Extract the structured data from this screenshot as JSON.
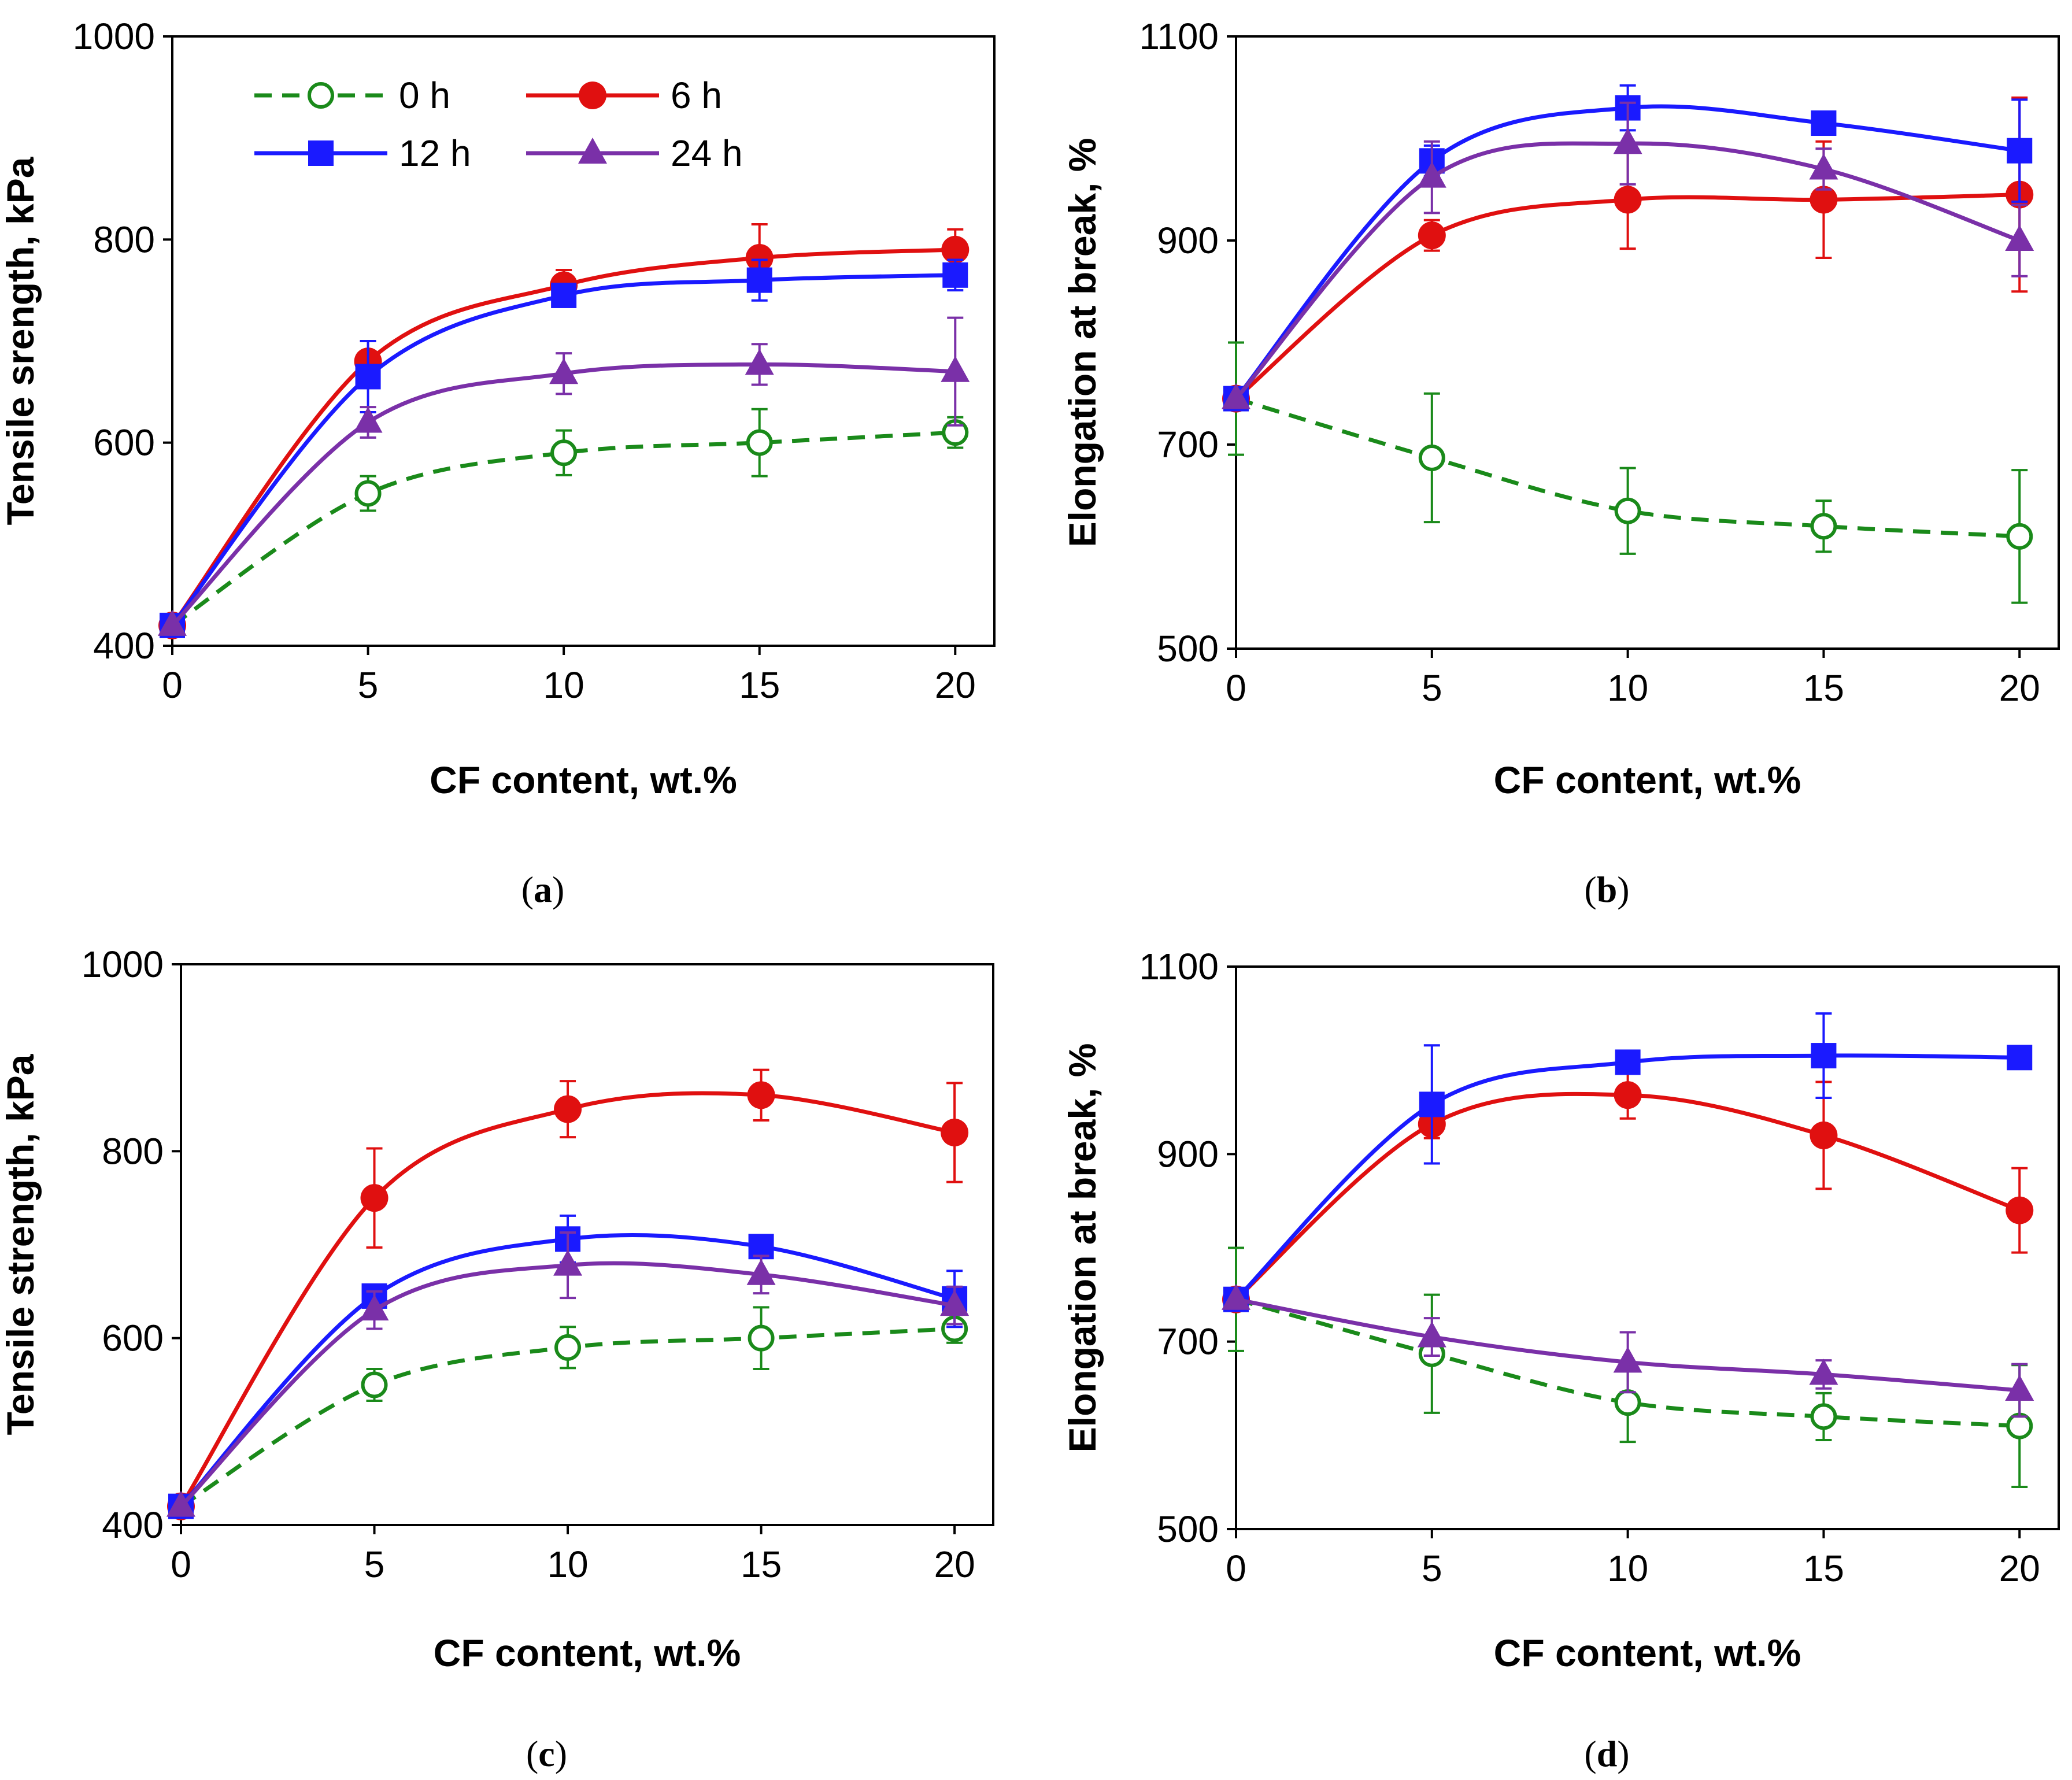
{
  "colors": {
    "0 h": "#1a8a1a",
    "6 h": "#e01010",
    "12 h": "#1a1aff",
    "24 h": "#7a30a8"
  },
  "chart_data": [
    {
      "id": "a",
      "type": "line",
      "panel_label": "a",
      "xlabel": "CF content, wt.%",
      "ylabel": "Tensile srength, kPa",
      "xlim": [
        0,
        21
      ],
      "ylim": [
        400,
        1000
      ],
      "xticks": [
        "0",
        "5",
        "10",
        "15",
        "20"
      ],
      "yticks": [
        "400",
        "600",
        "800",
        "1000"
      ],
      "legend": {
        "position": "top-left",
        "entries": [
          "0 h",
          "6 h",
          "12 h",
          "24 h"
        ]
      },
      "series": [
        {
          "name": "0 h",
          "x": [
            0,
            5,
            10,
            15,
            20
          ],
          "y": [
            420,
            550,
            590,
            600,
            610
          ],
          "err": [
            0,
            17,
            22,
            33,
            15
          ]
        },
        {
          "name": "6 h",
          "x": [
            0,
            5,
            10,
            15,
            20
          ],
          "y": [
            420,
            680,
            755,
            782,
            790
          ],
          "err": [
            0,
            20,
            15,
            33,
            20
          ]
        },
        {
          "name": "12 h",
          "x": [
            0,
            5,
            10,
            15,
            20
          ],
          "y": [
            420,
            665,
            745,
            760,
            765
          ],
          "err": [
            0,
            35,
            10,
            20,
            15
          ]
        },
        {
          "name": "24 h",
          "x": [
            0,
            5,
            10,
            15,
            20
          ],
          "y": [
            420,
            620,
            668,
            677,
            670
          ],
          "err": [
            0,
            15,
            20,
            20,
            53
          ]
        }
      ]
    },
    {
      "id": "b",
      "type": "line",
      "panel_label": "b",
      "xlabel": "CF content, wt.%",
      "ylabel": "Elongation at break, %",
      "xlim": [
        0,
        21
      ],
      "ylim": [
        500,
        1100
      ],
      "xticks": [
        "0",
        "5",
        "10",
        "15",
        "20"
      ],
      "yticks": [
        "500",
        "700",
        "900",
        "1100"
      ],
      "series": [
        {
          "name": "0 h",
          "x": [
            0,
            5,
            10,
            15,
            20
          ],
          "y": [
            745,
            687,
            635,
            620,
            610
          ],
          "err": [
            55,
            63,
            42,
            25,
            65
          ]
        },
        {
          "name": "6 h",
          "x": [
            0,
            5,
            10,
            15,
            20
          ],
          "y": [
            745,
            905,
            940,
            940,
            945
          ],
          "err": [
            0,
            15,
            48,
            57,
            95
          ]
        },
        {
          "name": "12 h",
          "x": [
            0,
            5,
            10,
            15,
            20
          ],
          "y": [
            745,
            978,
            1030,
            1015,
            988
          ],
          "err": [
            0,
            15,
            22,
            10,
            50
          ]
        },
        {
          "name": "24 h",
          "x": [
            0,
            5,
            10,
            15,
            20
          ],
          "y": [
            745,
            962,
            995,
            970,
            900
          ],
          "err": [
            0,
            35,
            40,
            20,
            35
          ]
        }
      ]
    },
    {
      "id": "c",
      "type": "line",
      "panel_label": "c",
      "xlabel": "CF content, wt.%",
      "ylabel": "Tensile strength, kPa",
      "xlim": [
        0,
        21
      ],
      "ylim": [
        400,
        1000
      ],
      "xticks": [
        "0",
        "5",
        "10",
        "15",
        "20"
      ],
      "yticks": [
        "400",
        "600",
        "800",
        "1000"
      ],
      "series": [
        {
          "name": "0 h",
          "x": [
            0,
            5,
            10,
            15,
            20
          ],
          "y": [
            420,
            550,
            590,
            600,
            610
          ],
          "err": [
            0,
            17,
            22,
            33,
            15
          ]
        },
        {
          "name": "6 h",
          "x": [
            0,
            5,
            10,
            15,
            20
          ],
          "y": [
            420,
            750,
            845,
            860,
            820
          ],
          "err": [
            0,
            53,
            30,
            27,
            53
          ]
        },
        {
          "name": "12 h",
          "x": [
            0,
            5,
            10,
            15,
            20
          ],
          "y": [
            420,
            645,
            706,
            698,
            642
          ],
          "err": [
            0,
            10,
            25,
            10,
            30
          ]
        },
        {
          "name": "24 h",
          "x": [
            0,
            5,
            10,
            15,
            20
          ],
          "y": [
            420,
            630,
            678,
            668,
            635
          ],
          "err": [
            0,
            20,
            35,
            20,
            20
          ]
        }
      ]
    },
    {
      "id": "d",
      "type": "line",
      "panel_label": "d",
      "xlabel": "CF content, wt.%",
      "ylabel": "Elongation at break, %",
      "xlim": [
        0,
        21
      ],
      "ylim": [
        500,
        1100
      ],
      "xticks": [
        "0",
        "5",
        "10",
        "15",
        "20"
      ],
      "yticks": [
        "500",
        "700",
        "900",
        "1100"
      ],
      "series": [
        {
          "name": "0 h",
          "x": [
            0,
            5,
            10,
            15,
            20
          ],
          "y": [
            745,
            687,
            635,
            620,
            610
          ],
          "err": [
            55,
            63,
            42,
            25,
            65
          ]
        },
        {
          "name": "6 h",
          "x": [
            0,
            5,
            10,
            15,
            20
          ],
          "y": [
            745,
            932,
            963,
            920,
            840
          ],
          "err": [
            0,
            15,
            25,
            57,
            45
          ]
        },
        {
          "name": "12 h",
          "x": [
            0,
            5,
            10,
            15,
            20
          ],
          "y": [
            745,
            953,
            998,
            1005,
            1003
          ],
          "err": [
            0,
            63,
            5,
            45,
            5
          ]
        },
        {
          "name": "24 h",
          "x": [
            0,
            5,
            10,
            15,
            20
          ],
          "y": [
            745,
            705,
            678,
            665,
            648
          ],
          "err": [
            0,
            20,
            32,
            15,
            28
          ]
        }
      ]
    }
  ]
}
